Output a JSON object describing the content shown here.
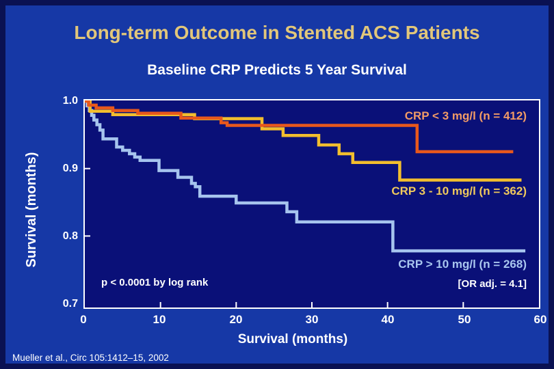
{
  "slide": {
    "title": "Long-term Outcome in Stented ACS Patients",
    "subtitle": "Baseline CRP Predicts 5 Year Survival",
    "footer": "Mueller et al., Circ 105:1412–15, 2002"
  },
  "colors": {
    "slide_background": "#1638a6",
    "slide_border": "#0a1152",
    "plot_background": "#0a1078",
    "axis": "#ffffff",
    "title_text": "#e2c77a",
    "subtitle_text": "#ffffff"
  },
  "chart_data": {
    "type": "line",
    "subtype": "kaplan-meier-step",
    "xlabel": "Survival (months)",
    "ylabel": "Survival (months)",
    "xlim": [
      0,
      60
    ],
    "ylim_top": 1.001,
    "ylim_bottom": 0.694,
    "xticks": [
      0,
      10,
      20,
      30,
      40,
      50,
      60
    ],
    "yticks": [
      1.0,
      0.9,
      0.8,
      0.7
    ],
    "xtick_labels": [
      "0",
      "10",
      "20",
      "30",
      "40",
      "50",
      "60"
    ],
    "ytick_labels": [
      "1.0",
      "0.9",
      "0.8",
      "0.7"
    ],
    "grid": false,
    "legend_position": "right-inside",
    "annotations": {
      "p_value": "p < 0.0001 by log rank",
      "or_adj": "[OR adj. = 4.1]"
    },
    "series": [
      {
        "name": "CRP > 10 mg/l (n = 268)",
        "color": "#a6c4ee",
        "label_color": "#a9c6ef",
        "end_x": 58.2,
        "points": [
          [
            0,
            1.0
          ],
          [
            0.3,
            0.993
          ],
          [
            0.6,
            0.986
          ],
          [
            0.9,
            0.979
          ],
          [
            1.2,
            0.972
          ],
          [
            1.6,
            0.965
          ],
          [
            2.0,
            0.957
          ],
          [
            2.4,
            0.944
          ],
          [
            4.2,
            0.932
          ],
          [
            5.0,
            0.927
          ],
          [
            5.9,
            0.922
          ],
          [
            6.6,
            0.917
          ],
          [
            7.3,
            0.912
          ],
          [
            9.8,
            0.897
          ],
          [
            12.3,
            0.887
          ],
          [
            14.1,
            0.878
          ],
          [
            14.6,
            0.873
          ],
          [
            15.2,
            0.859
          ],
          [
            20.0,
            0.849
          ],
          [
            26.7,
            0.836
          ],
          [
            28.0,
            0.821
          ],
          [
            40.7,
            0.778
          ]
        ]
      },
      {
        "name": "CRP 3 - 10 mg/l (n = 362)",
        "color": "#f2be2e",
        "label_color": "#efc95c",
        "end_x": 57.7,
        "points": [
          [
            0,
            1.0
          ],
          [
            0.7,
            0.985
          ],
          [
            3.7,
            0.98
          ],
          [
            14.5,
            0.974
          ],
          [
            23.4,
            0.959
          ],
          [
            26.2,
            0.949
          ],
          [
            30.9,
            0.935
          ],
          [
            33.6,
            0.922
          ],
          [
            35.4,
            0.909
          ],
          [
            41.6,
            0.883
          ]
        ]
      },
      {
        "name": "CRP < 3 mg/l (n = 412)",
        "color": "#e8581c",
        "label_color": "#f29b66",
        "end_x": 56.6,
        "points": [
          [
            0,
            1.0
          ],
          [
            0.5,
            0.994
          ],
          [
            1.5,
            0.99
          ],
          [
            3.7,
            0.986
          ],
          [
            7.0,
            0.982
          ],
          [
            12.7,
            0.975
          ],
          [
            18.0,
            0.968
          ],
          [
            18.8,
            0.964
          ],
          [
            43.9,
            0.925
          ]
        ]
      }
    ]
  }
}
